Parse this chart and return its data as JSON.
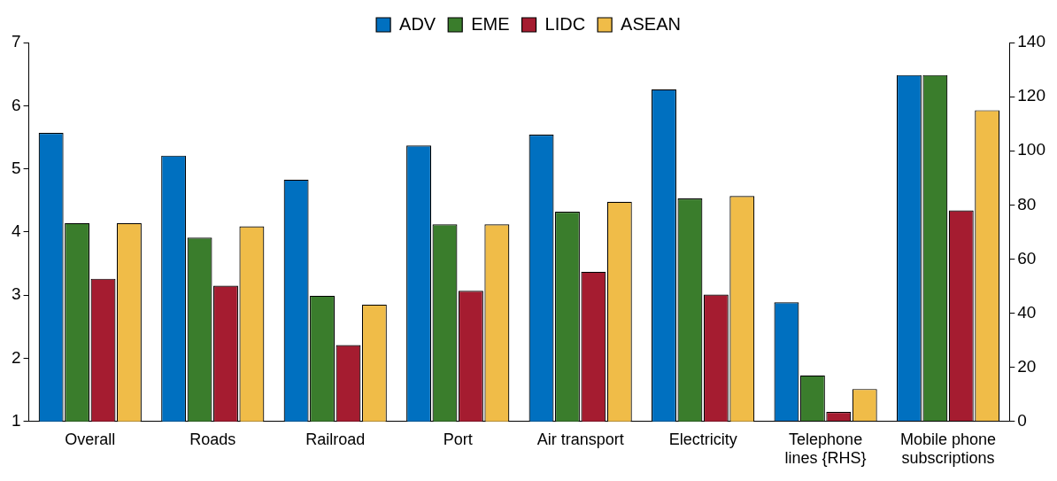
{
  "chart_data": {
    "type": "bar",
    "categories": [
      "Overall",
      "Roads",
      "Railroad",
      "Port",
      "Air transport",
      "Electricity",
      "Telephone lines {RHS}",
      "Mobile phone subscriptions"
    ],
    "series": [
      {
        "name": "ADV",
        "color": "#0070c0",
        "values": [
          5.57,
          5.21,
          4.83,
          5.37,
          5.54,
          6.26,
          null,
          null
        ]
      },
      {
        "name": "EME",
        "color": "#3a7d2c",
        "values": [
          4.14,
          3.91,
          2.99,
          4.12,
          4.32,
          4.53,
          null,
          null
        ]
      },
      {
        "name": "LIDC",
        "color": "#a51c30",
        "values": [
          3.26,
          3.15,
          2.21,
          3.07,
          3.37,
          3.01,
          null,
          null
        ]
      },
      {
        "name": "ASEAN",
        "color": "#f0bc48",
        "values": [
          4.14,
          4.09,
          2.85,
          4.12,
          4.48,
          4.57,
          null,
          null
        ]
      },
      {
        "color": "#0070c0",
        "axis": "y2",
        "values": [
          null,
          null,
          null,
          null,
          null,
          null,
          44,
          128
        ]
      },
      {
        "color": "#3a7d2c",
        "axis": "y2",
        "values": [
          null,
          null,
          null,
          null,
          null,
          null,
          17,
          128
        ]
      },
      {
        "color": "#a51c30",
        "axis": "y2",
        "values": [
          null,
          null,
          null,
          null,
          null,
          null,
          3.5,
          78
        ]
      },
      {
        "color": "#f0bc48",
        "axis": "y2",
        "values": [
          null,
          null,
          null,
          null,
          null,
          null,
          12,
          115
        ]
      }
    ],
    "ylim": [
      1,
      7
    ],
    "yticks": [
      1,
      2,
      3,
      4,
      5,
      6,
      7
    ],
    "y2lim": [
      0,
      140
    ],
    "y2ticks": [
      0,
      20,
      40,
      60,
      80,
      100,
      120,
      140
    ],
    "legend": "top",
    "grid": false
  }
}
